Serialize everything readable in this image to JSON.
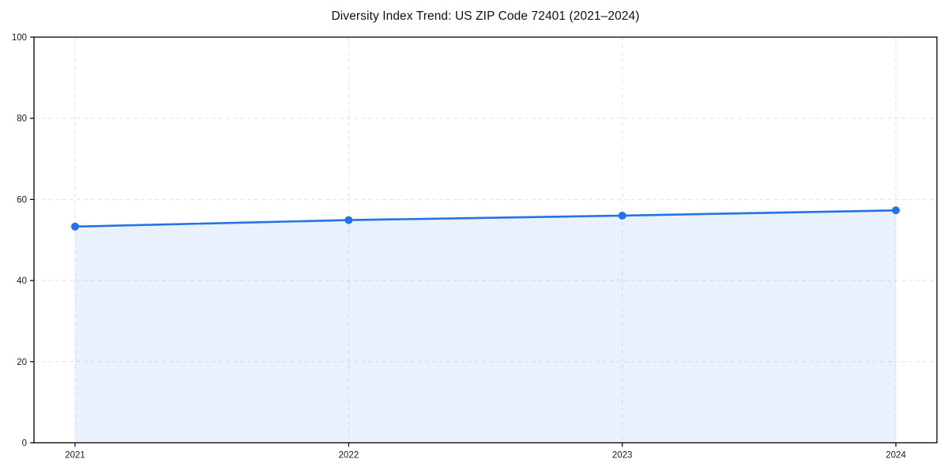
{
  "chart_data": {
    "type": "line",
    "title": "Diversity Index Trend: US ZIP Code 72401 (2021–2024)",
    "categories": [
      "2021",
      "2022",
      "2023",
      "2024"
    ],
    "values": [
      53.3,
      54.9,
      56.0,
      57.3
    ],
    "xlabel": "",
    "ylabel": "",
    "ylim": [
      0,
      100
    ],
    "yticks": [
      0,
      20,
      40,
      60,
      80,
      100
    ],
    "grid": {
      "shown": true,
      "style": "dashed"
    },
    "legend": {
      "shown": false
    },
    "area_fill": true,
    "colors": {
      "line": "#2273e6",
      "marker": "#2273e6",
      "fill": "rgba(34,115,230,0.10)",
      "grid": "#e2e2e2",
      "axis": "#000000",
      "tick_text": "#1a1a1a",
      "title_text": "#111111",
      "background": "#ffffff"
    }
  }
}
